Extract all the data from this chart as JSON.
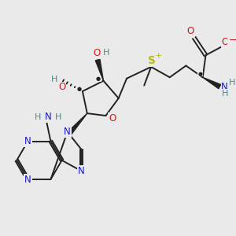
{
  "bg_color": "#eaeaea",
  "bond_color": "#222222",
  "colors": {
    "N": "#1a1acc",
    "O": "#cc1a1a",
    "S": "#bbbb00",
    "H": "#4a8888",
    "C": "#222222",
    "neg": "#cc1a1a"
  },
  "figsize": [
    3.0,
    3.0
  ],
  "dpi": 100
}
